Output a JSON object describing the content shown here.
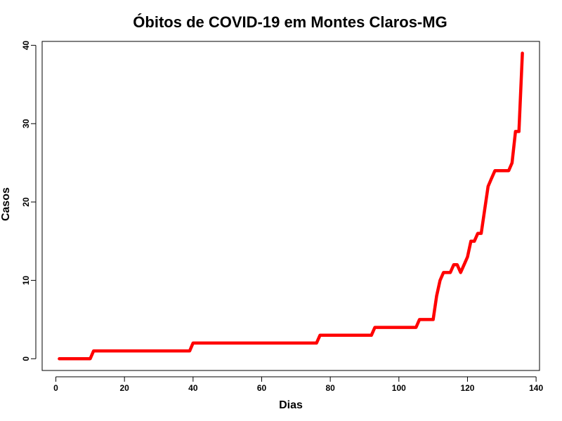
{
  "chart_data": {
    "type": "line",
    "title": "Óbitos de COVID-19 em Montes Claros-MG",
    "xlabel": "Dias",
    "ylabel": "Casos",
    "xlim": [
      -4,
      141
    ],
    "ylim": [
      -1.5,
      40.5
    ],
    "xticks": [
      0,
      20,
      40,
      60,
      80,
      100,
      120,
      140
    ],
    "yticks": [
      0,
      10,
      20,
      30,
      40
    ],
    "grid": false,
    "legend": "none",
    "series": [
      {
        "color": "#ff0000",
        "x": [
          1,
          10,
          11,
          39,
          40,
          76,
          77,
          92,
          93,
          105,
          106,
          110,
          111,
          112,
          113,
          114,
          115,
          116,
          117,
          118,
          119,
          120,
          121,
          122,
          123,
          124,
          125,
          126,
          127,
          128,
          129,
          130,
          131,
          132,
          133,
          134,
          135,
          136
        ],
        "y": [
          0,
          0,
          1,
          1,
          2,
          2,
          3,
          3,
          4,
          4,
          5,
          5,
          8,
          10,
          11,
          11,
          11,
          12,
          12,
          11,
          12,
          13,
          15,
          15,
          16,
          16,
          19,
          22,
          23,
          24,
          24,
          24,
          24,
          24,
          25,
          29,
          29,
          39
        ]
      }
    ]
  }
}
